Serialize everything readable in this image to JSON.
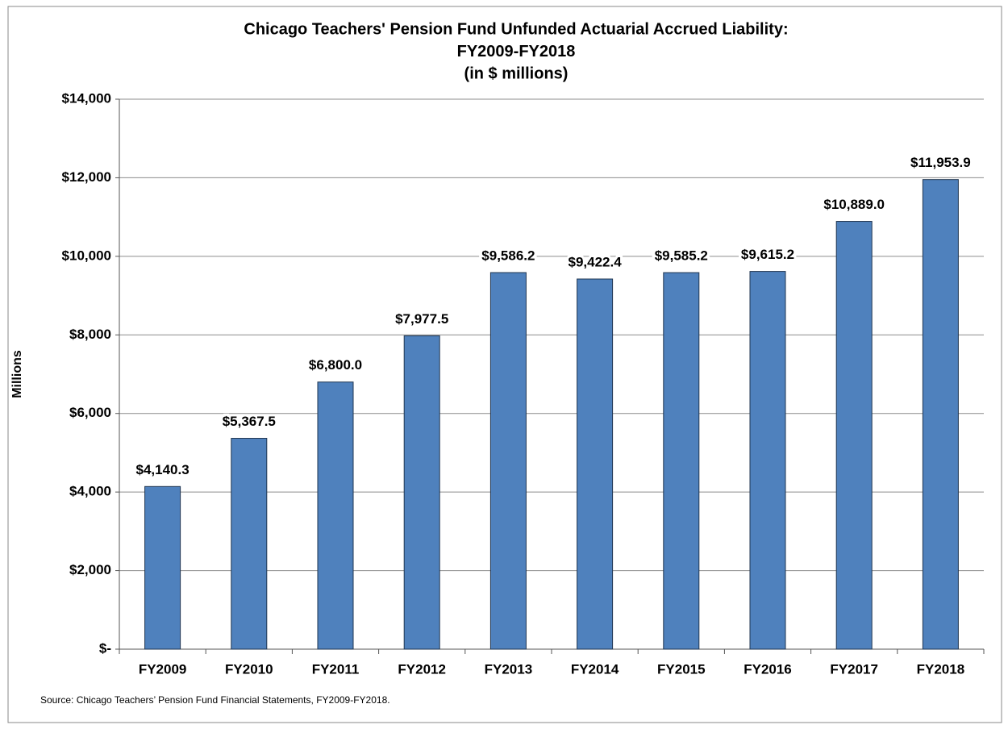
{
  "chart_data": {
    "type": "bar",
    "title": [
      "Chicago Teachers' Pension Fund Unfunded Actuarial Accrued Liability:",
      "FY2009-FY2018",
      "(in $ millions)"
    ],
    "y_label": "Millions",
    "source": "Source: Chicago Teachers’ Pension Fund Financial Statements, FY2009-FY2018.",
    "categories": [
      "FY2009",
      "FY2010",
      "FY2011",
      "FY2012",
      "FY2013",
      "FY2014",
      "FY2015",
      "FY2016",
      "FY2017",
      "FY2018"
    ],
    "values": [
      4140.3,
      5367.5,
      6800.0,
      7977.5,
      9586.2,
      9422.4,
      9585.2,
      9615.2,
      10889.0,
      11953.9
    ],
    "value_labels": [
      "$4,140.3",
      "$5,367.5",
      "$6,800.0",
      "$7,977.5",
      "$9,586.2",
      "$9,422.4",
      "$9,585.2",
      "$9,615.2",
      "$10,889.0",
      "$11,953.9"
    ],
    "color": "#4f81bd",
    "ylim": [
      0,
      14000
    ],
    "yticks": [
      {
        "value": 0,
        "label": "$-"
      },
      {
        "value": 2000,
        "label": "$2,000"
      },
      {
        "value": 4000,
        "label": "$4,000"
      },
      {
        "value": 6000,
        "label": "$6,000"
      },
      {
        "value": 8000,
        "label": "$8,000"
      },
      {
        "value": 10000,
        "label": "$10,000"
      },
      {
        "value": 12000,
        "label": "$12,000"
      },
      {
        "value": 14000,
        "label": "$14,000"
      }
    ],
    "grid": true
  }
}
